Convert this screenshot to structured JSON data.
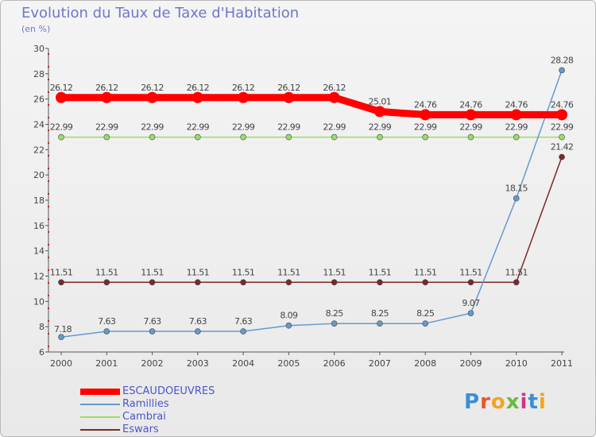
{
  "title": "Evolution du Taux de Taxe d'Habitation",
  "subtitle": "(en %)",
  "logo_text": "Proxiti",
  "chart_data": {
    "type": "line",
    "title": "Evolution du Taux de Taxe d'Habitation",
    "ylabel": "(en %)",
    "xlabel": "",
    "x": [
      "2000",
      "2001",
      "2002",
      "2003",
      "2004",
      "2005",
      "2006",
      "2007",
      "2008",
      "2009",
      "2010",
      "2011"
    ],
    "ylim": [
      6,
      30
    ],
    "yticks": [
      6,
      8,
      10,
      12,
      14,
      16,
      18,
      20,
      22,
      24,
      26,
      28,
      30
    ],
    "grid": false,
    "legend": "bottom-left",
    "series": [
      {
        "name": "ESCAUDOEUVRES",
        "color": "#ff0000",
        "values": [
          26.12,
          26.12,
          26.12,
          26.12,
          26.12,
          26.12,
          26.12,
          25.01,
          24.76,
          24.76,
          24.76,
          24.76
        ],
        "labels": [
          "26.12",
          "26.12",
          "26.12",
          "26.12",
          "26.12",
          "26.12",
          "26.12",
          "25.01",
          "24.76",
          "24.76",
          "24.76",
          "24.76"
        ]
      },
      {
        "name": "Ramillies",
        "color": "#6699cc",
        "values": [
          7.18,
          7.63,
          7.63,
          7.63,
          7.63,
          8.09,
          8.25,
          8.25,
          8.25,
          9.07,
          18.15,
          28.28
        ],
        "labels": [
          "7.18",
          "7.63",
          "7.63",
          "7.63",
          "7.63",
          "8.09",
          "8.25",
          "8.25",
          "8.25",
          "9.07",
          "18.15",
          "28.28"
        ]
      },
      {
        "name": "Cambrai",
        "color": "#99dd66",
        "values": [
          22.99,
          22.99,
          22.99,
          22.99,
          22.99,
          22.99,
          22.99,
          22.99,
          22.99,
          22.99,
          22.99,
          22.99
        ],
        "labels": [
          "22.99",
          "22.99",
          "22.99",
          "22.99",
          "22.99",
          "22.99",
          "22.99",
          "22.99",
          "22.99",
          "22.99",
          "22.99",
          "22.99"
        ]
      },
      {
        "name": "Eswars",
        "color": "#7a2a2a",
        "values": [
          11.51,
          11.51,
          11.51,
          11.51,
          11.51,
          11.51,
          11.51,
          11.51,
          11.51,
          11.51,
          11.51,
          21.42
        ],
        "labels": [
          "11.51",
          "11.51",
          "11.51",
          "11.51",
          "11.51",
          "11.51",
          "11.51",
          "11.51",
          "11.51",
          "11.51",
          "11.51",
          "21.42"
        ]
      }
    ]
  }
}
